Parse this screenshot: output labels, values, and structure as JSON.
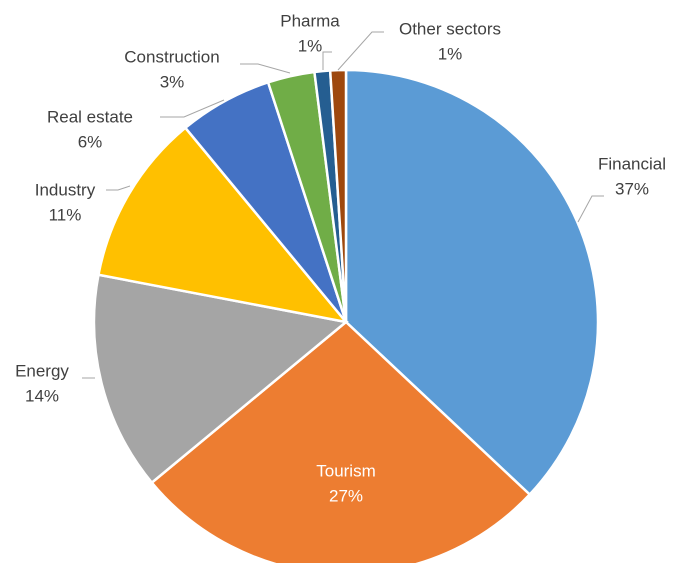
{
  "chart_data": {
    "type": "pie",
    "categories": [
      "Financial",
      "Tourism",
      "Energy",
      "Industry",
      "Real estate",
      "Construction",
      "Pharma",
      "Other sectors"
    ],
    "values": [
      37,
      27,
      14,
      11,
      6,
      3,
      1,
      1
    ],
    "value_labels": [
      "37%",
      "27%",
      "14%",
      "11%",
      "6%",
      "3%",
      "1%",
      "1%"
    ],
    "colors": [
      "#5b9bd5",
      "#ed7d31",
      "#a5a5a5",
      "#ffc000",
      "#4472c4",
      "#70ad47",
      "#255e91",
      "#9e480e"
    ]
  }
}
